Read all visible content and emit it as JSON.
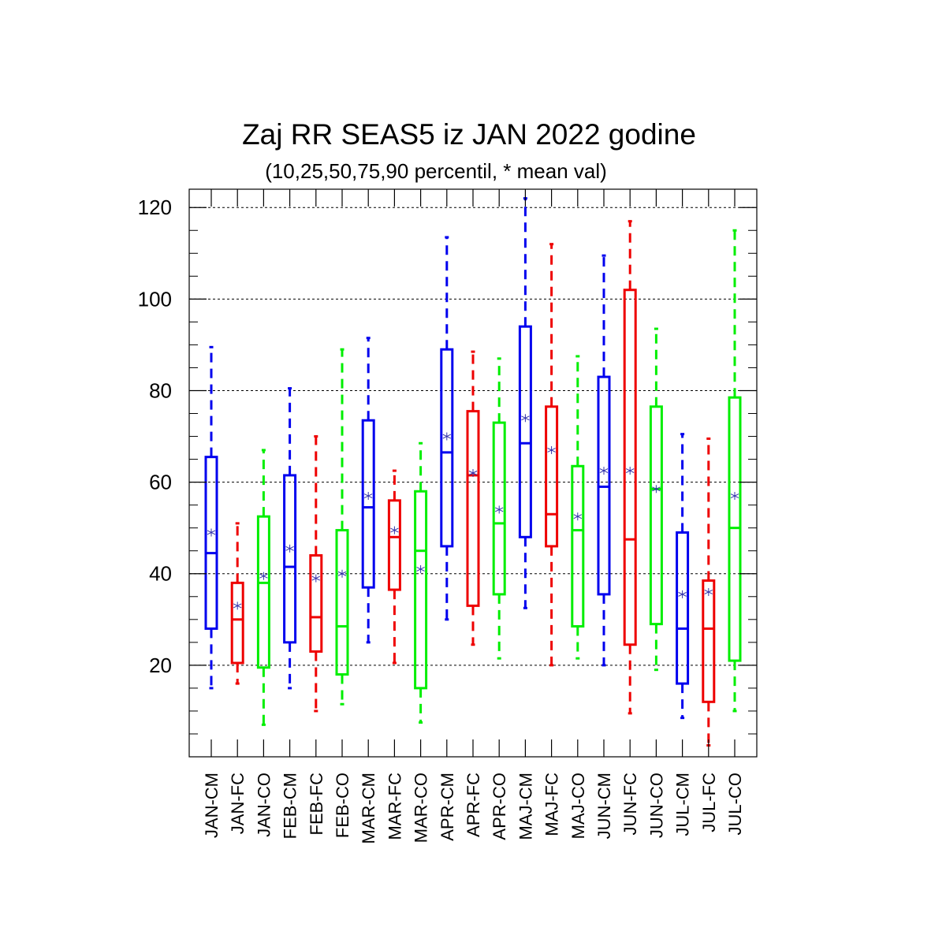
{
  "chart_data": {
    "type": "boxplot",
    "title": "Zaj RR SEAS5 iz JAN 2022 godine",
    "subtitle": "(10,25,50,75,90 percentil, * mean val)",
    "xlabel": "",
    "ylabel": "",
    "ylim": [
      0,
      124
    ],
    "yticks": [
      20,
      40,
      60,
      80,
      100,
      120
    ],
    "grid": true,
    "colors": {
      "CM": "#0000ee",
      "FC": "#ee0000",
      "CO": "#00ee00",
      "mean_marker": "#3333aa"
    },
    "boxes": [
      {
        "label": "JAN-CM",
        "p10": 15,
        "p25": 28,
        "p50": 44.5,
        "p75": 65.5,
        "p90": 89.5,
        "mean": 49
      },
      {
        "label": "JAN-FC",
        "p10": 16,
        "p25": 20.5,
        "p50": 30,
        "p75": 38,
        "p90": 51,
        "mean": 33
      },
      {
        "label": "JAN-CO",
        "p10": 7,
        "p25": 19.5,
        "p50": 38,
        "p75": 52.5,
        "p90": 67,
        "mean": 39.5
      },
      {
        "label": "FEB-CM",
        "p10": 15,
        "p25": 25,
        "p50": 41.5,
        "p75": 61.5,
        "p90": 80.5,
        "mean": 45.5
      },
      {
        "label": "FEB-FC",
        "p10": 10,
        "p25": 23,
        "p50": 30.5,
        "p75": 44,
        "p90": 70,
        "mean": 39
      },
      {
        "label": "FEB-CO",
        "p10": 11.5,
        "p25": 18,
        "p50": 28.5,
        "p75": 49.5,
        "p90": 89,
        "mean": 40
      },
      {
        "label": "MAR-CM",
        "p10": 25,
        "p25": 37,
        "p50": 54.5,
        "p75": 73.5,
        "p90": 91.5,
        "mean": 57
      },
      {
        "label": "MAR-FC",
        "p10": 20.5,
        "p25": 36.5,
        "p50": 48,
        "p75": 56,
        "p90": 62.5,
        "mean": 49.5
      },
      {
        "label": "MAR-CO",
        "p10": 7.5,
        "p25": 15,
        "p50": 45,
        "p75": 58,
        "p90": 68.5,
        "mean": 41
      },
      {
        "label": "APR-CM",
        "p10": 30,
        "p25": 46,
        "p50": 66.5,
        "p75": 89,
        "p90": 113.5,
        "mean": 70
      },
      {
        "label": "APR-FC",
        "p10": 24.5,
        "p25": 33,
        "p50": 61.5,
        "p75": 75.5,
        "p90": 88.5,
        "mean": 62
      },
      {
        "label": "APR-CO",
        "p10": 21.5,
        "p25": 35.5,
        "p50": 51,
        "p75": 73,
        "p90": 87,
        "mean": 54
      },
      {
        "label": "MAJ-CM",
        "p10": 32.5,
        "p25": 48,
        "p50": 68.5,
        "p75": 94,
        "p90": 122,
        "mean": 74
      },
      {
        "label": "MAJ-FC",
        "p10": 20,
        "p25": 46,
        "p50": 53,
        "p75": 76.5,
        "p90": 112,
        "mean": 67
      },
      {
        "label": "MAJ-CO",
        "p10": 21.5,
        "p25": 28.5,
        "p50": 49.5,
        "p75": 63.5,
        "p90": 87.5,
        "mean": 52.5
      },
      {
        "label": "JUN-CM",
        "p10": 20,
        "p25": 35.5,
        "p50": 59,
        "p75": 83,
        "p90": 109.5,
        "mean": 62.5
      },
      {
        "label": "JUN-FC",
        "p10": 9.5,
        "p25": 24.5,
        "p50": 47.5,
        "p75": 102,
        "p90": 117,
        "mean": 62.5
      },
      {
        "label": "JUN-CO",
        "p10": 19,
        "p25": 29,
        "p50": 58.5,
        "p75": 76.5,
        "p90": 93.5,
        "mean": 58.5
      },
      {
        "label": "JUL-CM",
        "p10": 8.5,
        "p25": 16,
        "p50": 28,
        "p75": 49,
        "p90": 70.5,
        "mean": 35.5
      },
      {
        "label": "JUL-FC",
        "p10": 2.5,
        "p25": 12,
        "p50": 28,
        "p75": 38.5,
        "p90": 69.5,
        "mean": 36
      },
      {
        "label": "JUL-CO",
        "p10": 10,
        "p25": 21,
        "p50": 50,
        "p75": 78.5,
        "p90": 115,
        "mean": 57
      }
    ]
  }
}
